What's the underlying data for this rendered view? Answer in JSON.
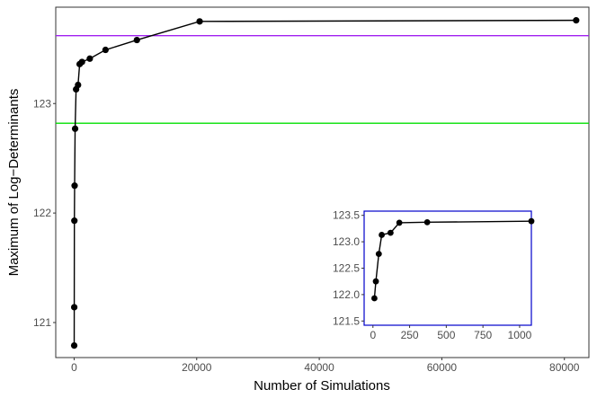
{
  "chart_data": [
    {
      "type": "line",
      "xlabel": "Number of Simulations",
      "ylabel": "Maximum of Log−Determinants",
      "xlim": [
        -3000,
        84000
      ],
      "ylim": [
        120.68,
        123.88
      ],
      "x_ticks": [
        0,
        20000,
        40000,
        60000,
        80000
      ],
      "x_tick_labels": [
        "0",
        "20000",
        "40000",
        "60000",
        "80000"
      ],
      "y_ticks": [
        121,
        122,
        123
      ],
      "y_tick_labels": [
        "121",
        "122",
        "123"
      ],
      "grid": false,
      "reference_lines": [
        {
          "y": 123.62,
          "color": "#a020f0"
        },
        {
          "y": 122.82,
          "color": "#00e000"
        }
      ],
      "series": [
        {
          "color": "#000000",
          "points": [
            {
              "x": 10,
              "y": 120.79
            },
            {
              "x": 20,
              "y": 121.14
            },
            {
              "x": 40,
              "y": 121.93
            },
            {
              "x": 80,
              "y": 122.25
            },
            {
              "x": 160,
              "y": 122.77
            },
            {
              "x": 320,
              "y": 123.13
            },
            {
              "x": 640,
              "y": 123.17
            },
            {
              "x": 900,
              "y": 123.36
            },
            {
              "x": 1280,
              "y": 123.38
            },
            {
              "x": 2560,
              "y": 123.41
            },
            {
              "x": 5120,
              "y": 123.49
            },
            {
              "x": 10240,
              "y": 123.58
            },
            {
              "x": 20480,
              "y": 123.75
            },
            {
              "x": 81920,
              "y": 123.76
            }
          ]
        }
      ]
    },
    {
      "type": "line",
      "inset": true,
      "frame_color": "#0000cc",
      "xlim": [
        -60,
        1080
      ],
      "ylim": [
        121.42,
        123.58
      ],
      "x_ticks": [
        0,
        250,
        500,
        750,
        1000
      ],
      "x_tick_labels": [
        "0",
        "250",
        "500",
        "750",
        "1000"
      ],
      "y_ticks": [
        121.5,
        122.0,
        122.5,
        123.0,
        123.5
      ],
      "y_tick_labels": [
        "121.5",
        "122.0",
        "122.5",
        "123.0",
        "123.5"
      ],
      "series": [
        {
          "color": "#000000",
          "points": [
            {
              "x": 10,
              "y": 121.93
            },
            {
              "x": 20,
              "y": 122.25
            },
            {
              "x": 40,
              "y": 122.77
            },
            {
              "x": 60,
              "y": 123.13
            },
            {
              "x": 120,
              "y": 123.17
            },
            {
              "x": 180,
              "y": 123.36
            },
            {
              "x": 370,
              "y": 123.37
            },
            {
              "x": 1080,
              "y": 123.39
            }
          ]
        }
      ]
    }
  ]
}
